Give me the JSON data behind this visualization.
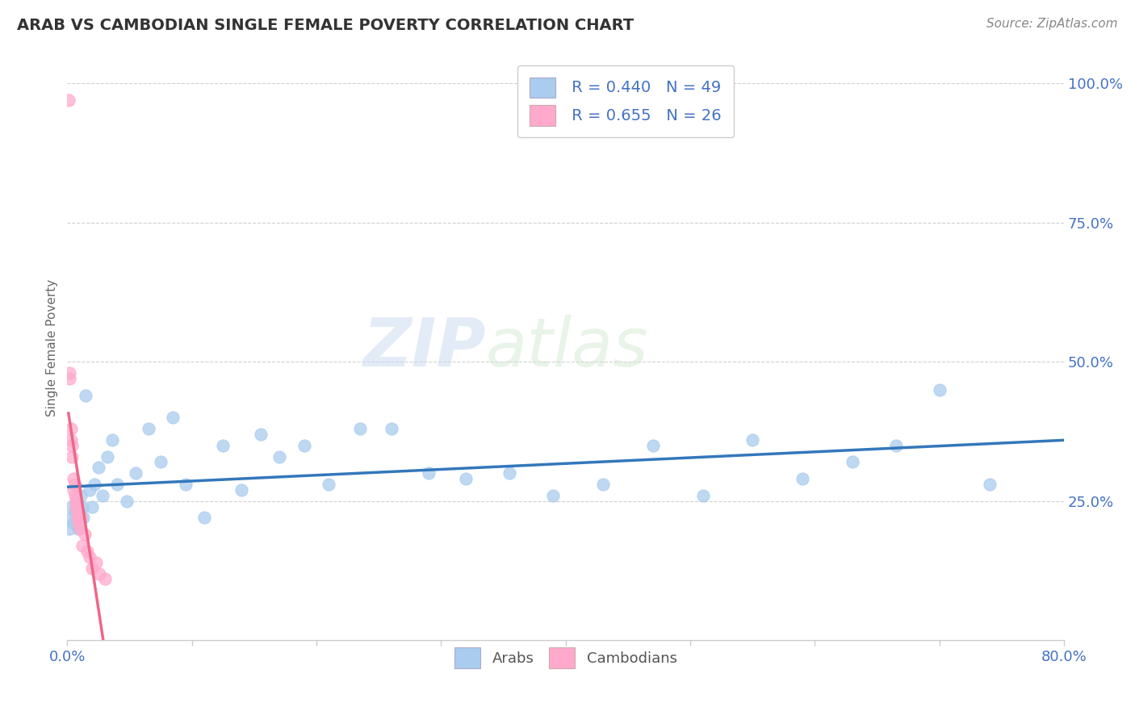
{
  "title": "ARAB VS CAMBODIAN SINGLE FEMALE POVERTY CORRELATION CHART",
  "source": "Source: ZipAtlas.com",
  "ylabel": "Single Female Poverty",
  "xlim": [
    0.0,
    0.8
  ],
  "ylim": [
    0.0,
    1.05
  ],
  "yticks": [
    0.25,
    0.5,
    0.75,
    1.0
  ],
  "ytick_labels": [
    "25.0%",
    "50.0%",
    "75.0%",
    "100.0%"
  ],
  "xticks": [
    0.0,
    0.1,
    0.2,
    0.3,
    0.4,
    0.5,
    0.6,
    0.7,
    0.8
  ],
  "xtick_labels": [
    "0.0%",
    "",
    "",
    "",
    "",
    "",
    "",
    "",
    "80.0%"
  ],
  "arab_R": 0.44,
  "arab_N": 49,
  "cambodian_R": 0.655,
  "cambodian_N": 26,
  "arab_color": "#aaccee",
  "cambodian_color": "#ffaacc",
  "arab_line_color": "#3377bb",
  "cambodian_line_color": "#ee6688",
  "cambodian_dash_color": "#ddaaaa",
  "watermark_text": "ZIPatlas",
  "background_color": "#ffffff",
  "grid_color": "#cccccc",
  "axis_color": "#4472c4",
  "title_color": "#333333",
  "source_color": "#888888",
  "ylabel_color": "#666666",
  "arab_x": [
    0.002,
    0.003,
    0.004,
    0.005,
    0.006,
    0.007,
    0.008,
    0.009,
    0.01,
    0.011,
    0.012,
    0.013,
    0.015,
    0.018,
    0.02,
    0.022,
    0.025,
    0.028,
    0.032,
    0.036,
    0.04,
    0.048,
    0.055,
    0.065,
    0.075,
    0.085,
    0.095,
    0.11,
    0.125,
    0.14,
    0.155,
    0.17,
    0.19,
    0.21,
    0.235,
    0.26,
    0.29,
    0.32,
    0.355,
    0.39,
    0.43,
    0.47,
    0.51,
    0.55,
    0.59,
    0.63,
    0.665,
    0.7,
    0.74
  ],
  "arab_y": [
    0.2,
    0.22,
    0.24,
    0.21,
    0.23,
    0.25,
    0.22,
    0.2,
    0.23,
    0.26,
    0.24,
    0.22,
    0.44,
    0.27,
    0.24,
    0.28,
    0.31,
    0.26,
    0.33,
    0.36,
    0.28,
    0.25,
    0.3,
    0.38,
    0.32,
    0.4,
    0.28,
    0.22,
    0.35,
    0.27,
    0.37,
    0.33,
    0.35,
    0.28,
    0.38,
    0.38,
    0.3,
    0.29,
    0.3,
    0.26,
    0.28,
    0.35,
    0.26,
    0.36,
    0.29,
    0.32,
    0.35,
    0.45,
    0.28
  ],
  "cambodian_x": [
    0.001,
    0.002,
    0.002,
    0.003,
    0.003,
    0.004,
    0.004,
    0.005,
    0.005,
    0.006,
    0.006,
    0.007,
    0.007,
    0.008,
    0.008,
    0.009,
    0.01,
    0.011,
    0.012,
    0.014,
    0.016,
    0.018,
    0.02,
    0.023,
    0.026,
    0.03
  ],
  "cambodian_y": [
    0.97,
    0.47,
    0.48,
    0.36,
    0.38,
    0.33,
    0.35,
    0.27,
    0.29,
    0.26,
    0.28,
    0.25,
    0.24,
    0.23,
    0.22,
    0.21,
    0.2,
    0.22,
    0.17,
    0.19,
    0.16,
    0.15,
    0.13,
    0.14,
    0.12,
    0.11
  ],
  "arab_line_intercept": 0.195,
  "arab_line_slope": 0.385,
  "cambodian_line_intercept": 0.38,
  "cambodian_line_slope": -12.0
}
